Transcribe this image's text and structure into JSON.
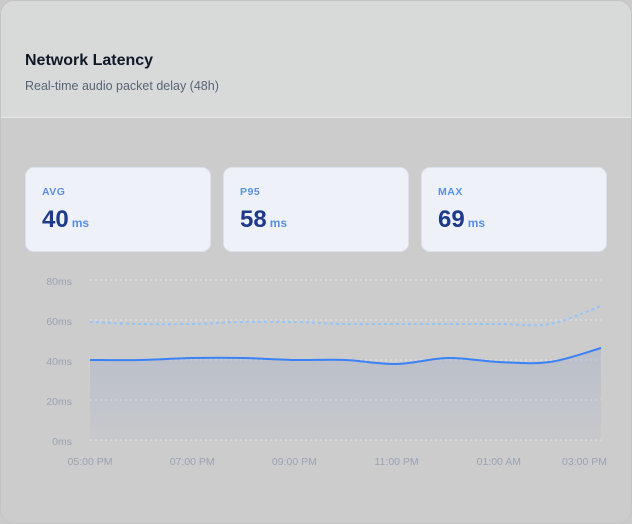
{
  "header": {
    "title": "Network Latency",
    "subtitle": "Real-time audio packet delay (48h)"
  },
  "stats": [
    {
      "label": "AVG",
      "value": 40,
      "unit": "ms"
    },
    {
      "label": "P95",
      "value": 58,
      "unit": "ms"
    },
    {
      "label": "MAX",
      "value": 69,
      "unit": "ms"
    }
  ],
  "chart_data": {
    "type": "line",
    "categories": [
      "05:00 PM",
      null,
      "07:00 PM",
      null,
      "09:00 PM",
      null,
      "11:00 PM",
      null,
      "01:00 AM",
      null,
      "03:00 PM"
    ],
    "series": [
      {
        "name": "AVG",
        "color": "#3b82f6",
        "values": [
          40,
          40,
          41,
          41,
          40,
          40,
          38,
          41,
          39,
          39,
          46
        ]
      },
      {
        "name": "P95",
        "color": "#93c5fd",
        "values": [
          59,
          58,
          58,
          59,
          59,
          58,
          58,
          58,
          58,
          58,
          67
        ]
      }
    ],
    "ylim": [
      0,
      80
    ],
    "yticks": [
      {
        "value": 0,
        "label": "0ms"
      },
      {
        "value": 20,
        "label": "20ms"
      },
      {
        "value": 40,
        "label": "40ms"
      },
      {
        "value": 60,
        "label": "60ms"
      },
      {
        "value": 80,
        "label": "80ms"
      }
    ],
    "grid": true
  }
}
